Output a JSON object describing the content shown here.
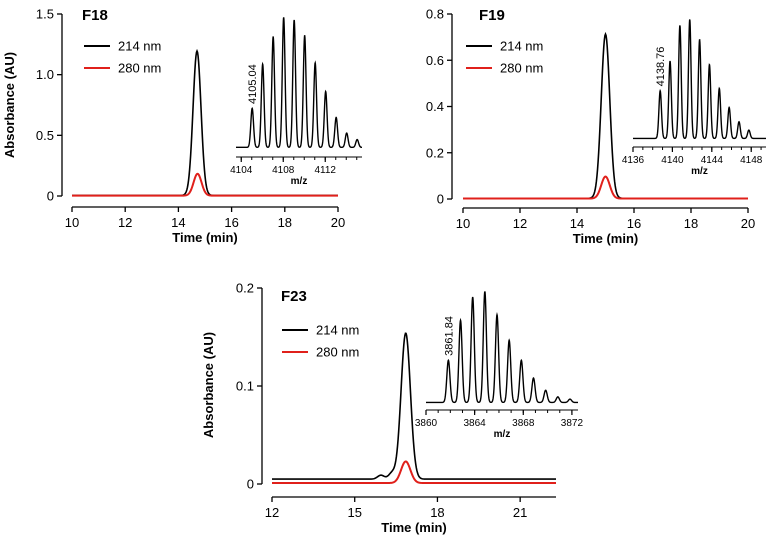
{
  "chart_data": [
    {
      "type": "line",
      "title": "F18",
      "xlabel": "Time (min)",
      "ylabel": "Absorbance (AU)",
      "xlim": [
        10,
        20
      ],
      "ylim": [
        0,
        1.5
      ],
      "xticks": [
        "10",
        "12",
        "14",
        "16",
        "18",
        "20"
      ],
      "yticks": [
        "0",
        "0.5",
        "1.0",
        "1.5"
      ],
      "series": [
        {
          "name": "214 nm",
          "color": "#000000",
          "peak_x": 14.7,
          "peak_y": 1.19,
          "baseline": 0.005,
          "width": 0.15,
          "bumps": []
        },
        {
          "name": "280 nm",
          "color": "#e0201b",
          "peak_x": 14.72,
          "peak_y": 0.18,
          "baseline": 0.003,
          "width": 0.15,
          "bumps": []
        }
      ],
      "inset": {
        "type": "line",
        "xlabel": "m/z",
        "xlim": [
          4103.5,
          4115.5
        ],
        "xticks": [
          "4104",
          "4108",
          "4112"
        ],
        "peak_label": "4105.04",
        "peak_label_x": 4105.04,
        "peaks": [
          {
            "x": 4105.04,
            "y": 0.3
          },
          {
            "x": 4106.04,
            "y": 0.64
          },
          {
            "x": 4107.04,
            "y": 0.85
          },
          {
            "x": 4108.04,
            "y": 1.0
          },
          {
            "x": 4109.04,
            "y": 0.98
          },
          {
            "x": 4110.04,
            "y": 0.86
          },
          {
            "x": 4111.04,
            "y": 0.65
          },
          {
            "x": 4112.04,
            "y": 0.43
          },
          {
            "x": 4113.04,
            "y": 0.23
          },
          {
            "x": 4114.04,
            "y": 0.11
          },
          {
            "x": 4115.04,
            "y": 0.06
          }
        ]
      },
      "legend_position": "top-left"
    },
    {
      "type": "line",
      "title": "F19",
      "xlabel": "Time (min)",
      "ylabel": "",
      "xlim": [
        10,
        20
      ],
      "ylim": [
        0,
        0.8
      ],
      "xticks": [
        "10",
        "12",
        "14",
        "16",
        "18",
        "20"
      ],
      "yticks": [
        "0",
        "0.2",
        "0.4",
        "0.6",
        "0.8"
      ],
      "series": [
        {
          "name": "214 nm",
          "color": "#000000",
          "peak_x": 15.0,
          "peak_y": 0.71,
          "baseline": 0.003,
          "width": 0.15,
          "bumps": []
        },
        {
          "name": "280 nm",
          "color": "#e0201b",
          "peak_x": 15.0,
          "peak_y": 0.095,
          "baseline": 0.002,
          "width": 0.15,
          "bumps": []
        }
      ],
      "inset": {
        "type": "line",
        "xlabel": "m/z",
        "xlim": [
          4136,
          4149.5
        ],
        "xticks": [
          "4136",
          "4140",
          "4144",
          "4148"
        ],
        "peak_label": "4138.76",
        "peak_label_x": 4138.76,
        "peaks": [
          {
            "x": 4138.76,
            "y": 0.4
          },
          {
            "x": 4139.76,
            "y": 0.65
          },
          {
            "x": 4140.76,
            "y": 0.95
          },
          {
            "x": 4141.76,
            "y": 1.0
          },
          {
            "x": 4142.76,
            "y": 0.83
          },
          {
            "x": 4143.76,
            "y": 0.62
          },
          {
            "x": 4144.76,
            "y": 0.42
          },
          {
            "x": 4145.76,
            "y": 0.26
          },
          {
            "x": 4146.76,
            "y": 0.14
          },
          {
            "x": 4147.76,
            "y": 0.07
          }
        ]
      },
      "legend_position": "top-left"
    },
    {
      "type": "line",
      "title": "F23",
      "xlabel": "Time (min)",
      "ylabel": "Absorbance (AU)",
      "xlim": [
        12,
        22.3
      ],
      "ylim": [
        0,
        0.2
      ],
      "xticks": [
        "12",
        "15",
        "18",
        "21"
      ],
      "yticks": [
        "0",
        "0.1",
        "0.2"
      ],
      "series": [
        {
          "name": "214 nm",
          "color": "#000000",
          "peak_x": 16.85,
          "peak_y": 0.149,
          "baseline": 0.005,
          "width": 0.17,
          "bumps": [
            {
              "x": 15.95,
              "y": 0.004,
              "w": 0.12
            },
            {
              "x": 16.35,
              "y": 0.006,
              "w": 0.12
            }
          ]
        },
        {
          "name": "280 nm",
          "color": "#e0201b",
          "peak_x": 16.85,
          "peak_y": 0.022,
          "baseline": 0.001,
          "width": 0.17,
          "bumps": []
        }
      ],
      "inset": {
        "type": "line",
        "xlabel": "m/z",
        "xlim": [
          3860,
          3872.5
        ],
        "xticks": [
          "3860",
          "3864",
          "3868",
          "3872"
        ],
        "peak_label": "3861.84",
        "peak_label_x": 3861.84,
        "peaks": [
          {
            "x": 3861.84,
            "y": 0.38
          },
          {
            "x": 3862.84,
            "y": 0.74
          },
          {
            "x": 3863.84,
            "y": 0.95
          },
          {
            "x": 3864.84,
            "y": 1.0
          },
          {
            "x": 3865.84,
            "y": 0.79
          },
          {
            "x": 3866.84,
            "y": 0.56
          },
          {
            "x": 3867.84,
            "y": 0.38
          },
          {
            "x": 3868.84,
            "y": 0.22
          },
          {
            "x": 3869.84,
            "y": 0.11
          },
          {
            "x": 3870.84,
            "y": 0.05
          },
          {
            "x": 3871.84,
            "y": 0.03
          }
        ]
      },
      "legend_position": "top-left"
    }
  ]
}
